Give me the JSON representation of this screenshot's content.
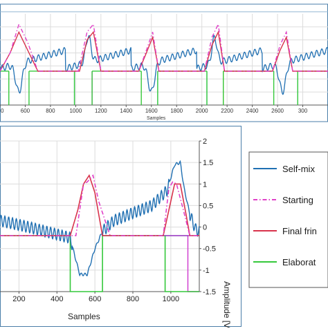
{
  "colors": {
    "self_mix": "#1f6fb2",
    "starting": "#e040c8",
    "final": "#d8324b",
    "elaborated": "#34c83a",
    "marker_cyan": "#7fd8e6",
    "marker_orange": "#f0a030",
    "marker_magenta": "#d040d0",
    "frame": "#4a7ea8",
    "grid": "#dcdcdc"
  },
  "top_chart": {
    "xlabel": "Samples",
    "xticks": [
      "0",
      "600",
      "800",
      "1000",
      "1200",
      "1400",
      "1600",
      "1800",
      "2000",
      "2200",
      "2400",
      "2600",
      "300"
    ]
  },
  "bottom_chart": {
    "xlabel": "Samples",
    "ylabel": "Amplitude [V]",
    "xticks": [
      "200",
      "400",
      "600",
      "800",
      "1000"
    ],
    "yticks": [
      "2",
      "1.5",
      "1",
      "0.5",
      "0",
      "-0.5",
      "-1",
      "-1.5"
    ]
  },
  "legend": {
    "items": [
      {
        "label": "Self-mix",
        "color": "#1f6fb2",
        "dash": "solid"
      },
      {
        "label": "Starting",
        "color": "#e040c8",
        "dash": "dashdot"
      },
      {
        "label": "Final frin",
        "color": "#d8324b",
        "dash": "solid"
      },
      {
        "label": "Elaborat",
        "color": "#34c83a",
        "dash": "solid"
      }
    ]
  },
  "chart_data": [
    {
      "type": "line",
      "xlabel": "Samples",
      "xlim": [
        400,
        3000
      ],
      "ylim": [
        -1.5,
        2
      ],
      "pulse_centers": [
        550,
        1100,
        1600,
        2100,
        2640
      ],
      "series": [
        {
          "key": "self_mix",
          "desc": "sawtooth with fringe oscillation, dips at 500/1550/2600 and peaks at 1100/2100"
        },
        {
          "key": "starting",
          "x": [
            400,
            480,
            550,
            620,
            700,
            1020,
            1090,
            1140,
            1200,
            1500,
            1560,
            1610,
            1660,
            2020,
            2080,
            2130,
            2180,
            2560,
            2620,
            2670,
            2720,
            3000
          ],
          "y": [
            -0.2,
            0.5,
            1.6,
            0.9,
            -0.2,
            -0.2,
            1.3,
            1.6,
            -0.2,
            -0.2,
            0.6,
            1.3,
            -0.2,
            -0.2,
            1.1,
            1.6,
            -0.2,
            -0.2,
            0.8,
            1.3,
            -0.2,
            -0.2
          ]
        },
        {
          "key": "final",
          "x": [
            400,
            480,
            550,
            620,
            700,
            1030,
            1090,
            1140,
            1200,
            1500,
            1560,
            1610,
            1660,
            2020,
            2080,
            2130,
            2180,
            2560,
            2620,
            2670,
            2720,
            3000
          ],
          "y": [
            -0.2,
            0.5,
            1.3,
            0.6,
            -0.2,
            -0.2,
            1.0,
            1.3,
            -0.2,
            -0.2,
            0.5,
            1.1,
            -0.2,
            -0.2,
            0.8,
            1.3,
            -0.2,
            -0.2,
            0.6,
            1.1,
            -0.2,
            -0.2
          ]
        },
        {
          "key": "elaborated",
          "gates": [
            [
              400,
              470
            ],
            [
              630,
              990
            ],
            [
              1130,
              1520
            ],
            [
              1650,
              2040
            ],
            [
              2170,
              2570
            ],
            [
              2760,
              3000
            ]
          ],
          "high": -0.2,
          "low": -1.5
        }
      ]
    },
    {
      "type": "line",
      "xlabel": "Samples",
      "ylabel": "Amplitude [V]",
      "xlim": [
        100,
        1150
      ],
      "ylim": [
        -1.5,
        2
      ],
      "series": [
        {
          "key": "self_mix",
          "x": [
            100,
            250,
            470,
            490,
            520,
            560,
            600,
            640,
            700,
            900,
            980,
            1020,
            1050,
            1070,
            1100,
            1130,
            1150
          ],
          "y": [
            0.15,
            0.0,
            -0.25,
            -0.6,
            -1.1,
            -1.1,
            -0.5,
            -0.1,
            0.15,
            0.5,
            0.85,
            1.45,
            1.5,
            0.9,
            0.3,
            -0.05,
            -0.1
          ]
        },
        {
          "key": "starting",
          "x": [
            100,
            500,
            540,
            560,
            590,
            620,
            680,
            960,
            990,
            1010,
            1030,
            1060,
            1100,
            1150
          ],
          "y": [
            -0.2,
            -0.2,
            1.0,
            1.05,
            1.2,
            0.6,
            -0.2,
            -0.2,
            0.9,
            1.05,
            1.0,
            0.5,
            -0.2,
            -0.2
          ]
        },
        {
          "key": "final",
          "x": [
            100,
            470,
            510,
            540,
            570,
            600,
            640,
            960,
            990,
            1020,
            1050,
            1080,
            1100,
            1150
          ],
          "y": [
            -0.2,
            -0.2,
            0.4,
            1.0,
            1.2,
            0.8,
            -0.2,
            -0.2,
            0.4,
            1.0,
            1.0,
            0.3,
            -0.2,
            -0.2
          ]
        },
        {
          "key": "elaborated",
          "x": [
            100,
            470,
            470,
            640,
            640,
            970,
            970,
            1150
          ],
          "y": [
            -0.2,
            -0.2,
            -1.5,
            -1.5,
            -0.2,
            -0.2,
            -1.5,
            -1.5
          ]
        },
        {
          "key": "magenta_gate",
          "x": [
            970,
            1090,
            1090,
            1150
          ],
          "y": [
            -0.2,
            -0.2,
            -1.5,
            -1.5
          ]
        }
      ]
    }
  ]
}
